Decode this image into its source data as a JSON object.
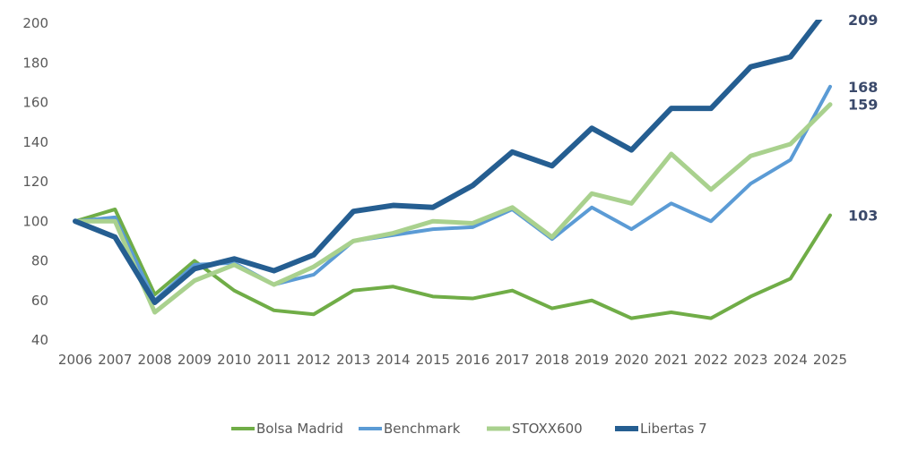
{
  "chart_data": {
    "type": "line",
    "title": "",
    "xlabel": "",
    "ylabel": "",
    "x": [
      "2006",
      "2007",
      "2008",
      "2009",
      "2010",
      "2011",
      "2012",
      "2013",
      "2014",
      "2015",
      "2016",
      "2017",
      "2018",
      "2019",
      "2020",
      "2021",
      "2022",
      "2023",
      "2024",
      "2025"
    ],
    "ylim": [
      40,
      200
    ],
    "yticks": [
      "40",
      "60",
      "80",
      "100",
      "120",
      "140",
      "160",
      "180",
      "200"
    ],
    "grid": false,
    "legend": "bottom",
    "series": [
      {
        "name": "Bolsa Madrid",
        "color": "#70ad47",
        "end_label": "103",
        "values": [
          100,
          106,
          63,
          80,
          65,
          55,
          53,
          65,
          67,
          62,
          61,
          65,
          56,
          60,
          51,
          54,
          51,
          62,
          71,
          103
        ]
      },
      {
        "name": "Benchmark",
        "color": "#5b9bd5",
        "end_label": "168",
        "values": [
          100,
          102,
          60,
          78,
          79,
          68,
          73,
          90,
          93,
          96,
          97,
          106,
          91,
          107,
          96,
          109,
          100,
          119,
          131,
          168
        ]
      },
      {
        "name": "STOXX600",
        "color": "#a9d18e",
        "end_label": "159",
        "values": [
          100,
          100,
          54,
          70,
          78,
          68,
          77,
          90,
          94,
          100,
          99,
          107,
          92,
          114,
          109,
          134,
          116,
          133,
          139,
          159
        ]
      },
      {
        "name": "Libertas 7",
        "color": "#255e91",
        "end_label": "209",
        "values": [
          100,
          92,
          59,
          76,
          81,
          75,
          83,
          105,
          108,
          107,
          118,
          135,
          128,
          147,
          136,
          157,
          157,
          178,
          183,
          209
        ]
      }
    ]
  }
}
